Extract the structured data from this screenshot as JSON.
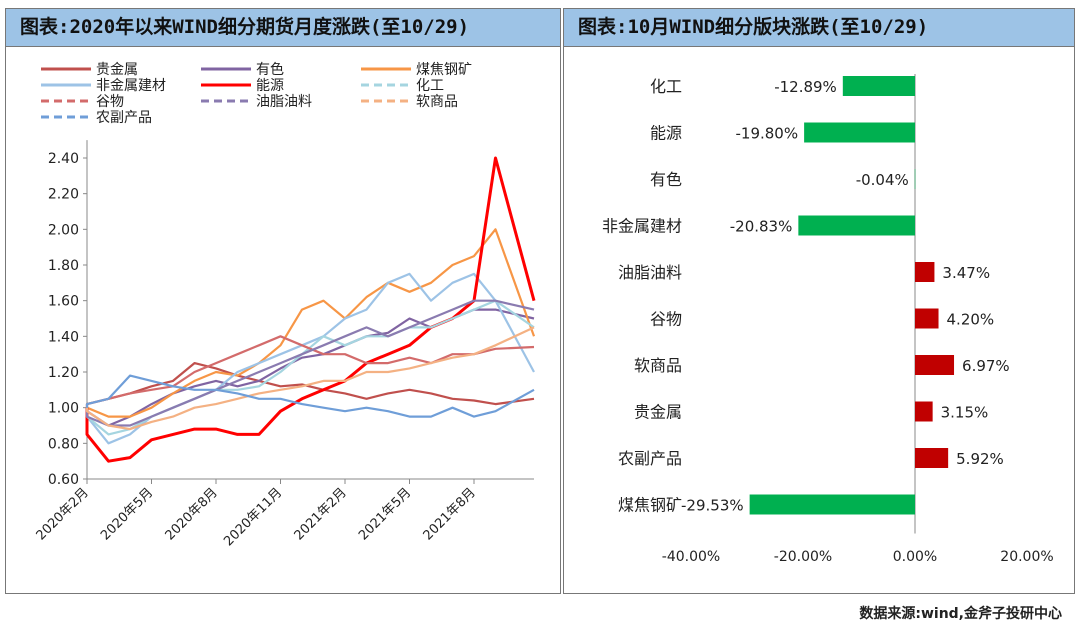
{
  "chart_data": [
    {
      "type": "line",
      "title": "图表:2020年以来WIND细分期货月度涨跌(至10/29)",
      "ylim": [
        0.6,
        2.5
      ],
      "yticks": [
        "0.60",
        "0.80",
        "1.00",
        "1.20",
        "1.40",
        "1.60",
        "1.80",
        "2.00",
        "2.20",
        "2.40"
      ],
      "xticks": [
        "2020年2月",
        "2020年5月",
        "2020年8月",
        "2020年11月",
        "2021年2月",
        "2021年5月",
        "2021年8月"
      ],
      "x": [
        "2020-01",
        "2020-02",
        "2020-03",
        "2020-04",
        "2020-05",
        "2020-06",
        "2020-07",
        "2020-08",
        "2020-09",
        "2020-10",
        "2020-11",
        "2020-12",
        "2021-01",
        "2021-02",
        "2021-03",
        "2021-04",
        "2021-05",
        "2021-06",
        "2021-07",
        "2021-08",
        "2021-09",
        "2021-10"
      ],
      "legend": "top",
      "series": [
        {
          "name": "贵金属",
          "color": "#c0504d",
          "dash": false,
          "values": [
            1.0,
            1.02,
            1.05,
            1.08,
            1.12,
            1.15,
            1.25,
            1.22,
            1.18,
            1.15,
            1.12,
            1.13,
            1.1,
            1.08,
            1.05,
            1.08,
            1.1,
            1.08,
            1.05,
            1.04,
            1.02,
            1.05
          ]
        },
        {
          "name": "有色",
          "color": "#8064a2",
          "dash": false,
          "values": [
            1.0,
            0.98,
            0.9,
            0.95,
            1.02,
            1.08,
            1.12,
            1.15,
            1.12,
            1.15,
            1.22,
            1.28,
            1.3,
            1.35,
            1.4,
            1.42,
            1.5,
            1.45,
            1.5,
            1.55,
            1.55,
            1.5
          ]
        },
        {
          "name": "煤焦钢矿",
          "color": "#f79646",
          "dash": false,
          "values": [
            1.0,
            1.0,
            0.95,
            0.95,
            1.0,
            1.08,
            1.15,
            1.2,
            1.18,
            1.25,
            1.35,
            1.55,
            1.6,
            1.5,
            1.62,
            1.7,
            1.65,
            1.7,
            1.8,
            1.85,
            2.0,
            1.4
          ]
        },
        {
          "name": "非金属建材",
          "color": "#9dc3e6",
          "dash": false,
          "values": [
            1.0,
            0.95,
            0.8,
            0.85,
            0.95,
            1.0,
            1.05,
            1.1,
            1.2,
            1.25,
            1.3,
            1.35,
            1.4,
            1.5,
            1.55,
            1.7,
            1.75,
            1.6,
            1.7,
            1.75,
            1.6,
            1.2
          ]
        },
        {
          "name": "能源",
          "color": "#ff0000",
          "dash": false,
          "values": [
            1.0,
            0.85,
            0.7,
            0.72,
            0.82,
            0.85,
            0.88,
            0.88,
            0.85,
            0.85,
            0.98,
            1.05,
            1.1,
            1.15,
            1.25,
            1.3,
            1.35,
            1.45,
            1.5,
            1.6,
            2.4,
            1.6
          ]
        },
        {
          "name": "化工",
          "color": "#a5d5e0",
          "dash": true,
          "values": [
            1.0,
            0.95,
            0.85,
            0.88,
            0.95,
            1.0,
            1.05,
            1.1,
            1.1,
            1.12,
            1.2,
            1.3,
            1.4,
            1.35,
            1.4,
            1.4,
            1.45,
            1.45,
            1.5,
            1.55,
            1.6,
            1.45
          ]
        },
        {
          "name": "谷物",
          "color": "#d36b6b",
          "dash": true,
          "values": [
            1.0,
            1.02,
            1.05,
            1.08,
            1.1,
            1.12,
            1.2,
            1.25,
            1.3,
            1.35,
            1.4,
            1.35,
            1.3,
            1.3,
            1.25,
            1.25,
            1.28,
            1.25,
            1.3,
            1.3,
            1.33,
            1.34
          ]
        },
        {
          "name": "油脂油料",
          "color": "#8a7bb0",
          "dash": true,
          "values": [
            1.0,
            0.95,
            0.9,
            0.9,
            0.95,
            1.0,
            1.05,
            1.1,
            1.15,
            1.2,
            1.25,
            1.3,
            1.35,
            1.4,
            1.45,
            1.4,
            1.45,
            1.5,
            1.55,
            1.6,
            1.6,
            1.55
          ]
        },
        {
          "name": "软商品",
          "color": "#f4b183",
          "dash": true,
          "values": [
            1.0,
            0.98,
            0.9,
            0.88,
            0.92,
            0.95,
            1.0,
            1.02,
            1.05,
            1.08,
            1.1,
            1.12,
            1.15,
            1.15,
            1.2,
            1.2,
            1.22,
            1.25,
            1.28,
            1.3,
            1.35,
            1.45
          ]
        },
        {
          "name": "农副产品",
          "color": "#6f9ed8",
          "dash": true,
          "values": [
            1.0,
            1.02,
            1.05,
            1.18,
            1.15,
            1.12,
            1.1,
            1.1,
            1.08,
            1.05,
            1.05,
            1.02,
            1.0,
            0.98,
            1.0,
            0.98,
            0.95,
            0.95,
            1.0,
            0.95,
            0.98,
            1.1
          ]
        }
      ]
    },
    {
      "type": "bar",
      "orientation": "horizontal",
      "title": "图表:10月WIND细分版块涨跌(至10/29)",
      "categories": [
        "化工",
        "能源",
        "有色",
        "非金属建材",
        "油脂油料",
        "谷物",
        "软商品",
        "贵金属",
        "农副产品",
        "煤焦钢矿"
      ],
      "values": [
        -12.89,
        -19.8,
        -0.04,
        -20.83,
        3.47,
        4.2,
        6.97,
        3.15,
        5.92,
        -29.53
      ],
      "labels": [
        "-12.89%",
        "-19.80%",
        "-0.04%",
        "-20.83%",
        "3.47%",
        "4.20%",
        "6.97%",
        "3.15%",
        "5.92%",
        "-29.53%"
      ],
      "xlim": [
        -40,
        20
      ],
      "xticks": [
        "-40.00%",
        "-20.00%",
        "0.00%",
        "20.00%"
      ],
      "colors": {
        "negative": "#00b050",
        "positive": "#c00000"
      }
    }
  ],
  "source": "数据来源:wind,金斧子投研中心"
}
